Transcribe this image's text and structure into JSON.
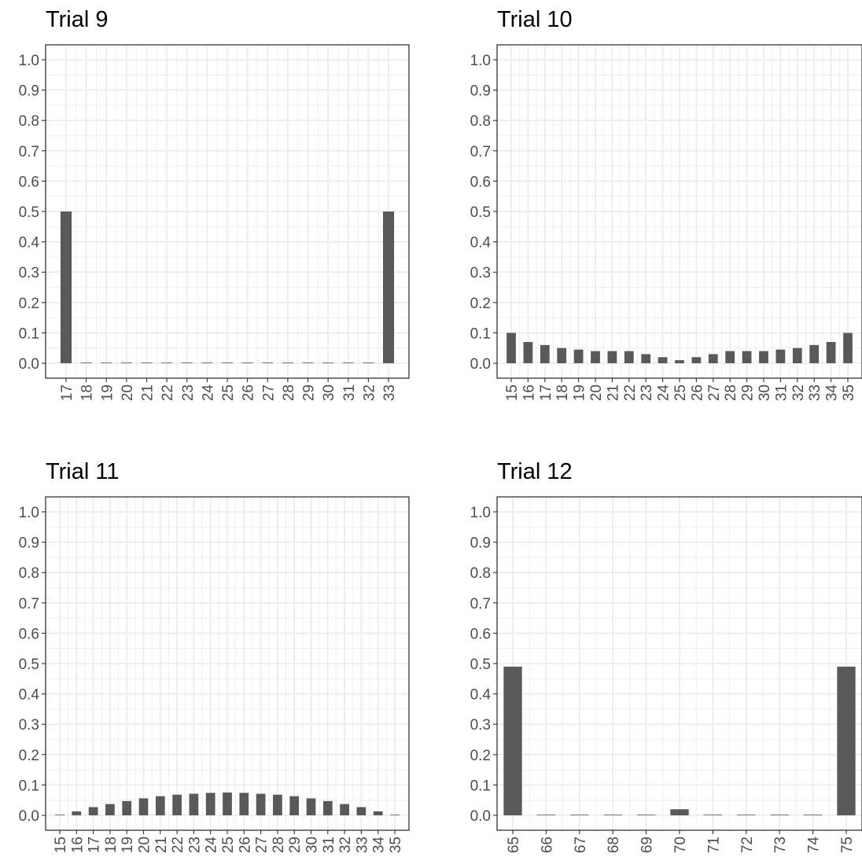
{
  "chart_data": [
    {
      "type": "bar",
      "title": "Trial 9",
      "categories": [
        "17",
        "18",
        "19",
        "20",
        "21",
        "22",
        "23",
        "24",
        "25",
        "26",
        "27",
        "28",
        "29",
        "30",
        "31",
        "32",
        "33"
      ],
      "values": [
        0.5,
        0,
        0,
        0,
        0,
        0,
        0,
        0,
        0,
        0,
        0,
        0,
        0,
        0,
        0,
        0,
        0.5
      ],
      "ylim": [
        0,
        1.0
      ],
      "yticks": [
        "0.0",
        "0.1",
        "0.2",
        "0.3",
        "0.4",
        "0.5",
        "0.6",
        "0.7",
        "0.8",
        "0.9",
        "1.0"
      ],
      "grid": true,
      "bar_color": "#595959"
    },
    {
      "type": "bar",
      "title": "Trial 10",
      "categories": [
        "15",
        "16",
        "17",
        "18",
        "19",
        "20",
        "21",
        "22",
        "23",
        "24",
        "25",
        "26",
        "27",
        "28",
        "29",
        "30",
        "31",
        "32",
        "33",
        "34",
        "35"
      ],
      "values": [
        0.1,
        0.07,
        0.06,
        0.05,
        0.045,
        0.04,
        0.04,
        0.04,
        0.03,
        0.02,
        0.01,
        0.02,
        0.03,
        0.04,
        0.04,
        0.04,
        0.045,
        0.05,
        0.06,
        0.07,
        0.1
      ],
      "ylim": [
        0,
        1.0
      ],
      "yticks": [
        "0.0",
        "0.1",
        "0.2",
        "0.3",
        "0.4",
        "0.5",
        "0.6",
        "0.7",
        "0.8",
        "0.9",
        "1.0"
      ],
      "grid": true,
      "bar_color": "#595959"
    },
    {
      "type": "bar",
      "title": "Trial 11",
      "categories": [
        "15",
        "16",
        "17",
        "18",
        "19",
        "20",
        "21",
        "22",
        "23",
        "24",
        "25",
        "26",
        "27",
        "28",
        "29",
        "30",
        "31",
        "32",
        "33",
        "34",
        "35"
      ],
      "values": [
        0.001,
        0.013,
        0.027,
        0.037,
        0.047,
        0.056,
        0.063,
        0.068,
        0.071,
        0.074,
        0.075,
        0.074,
        0.071,
        0.068,
        0.063,
        0.056,
        0.047,
        0.037,
        0.027,
        0.013,
        0.001
      ],
      "ylim": [
        0,
        1.0
      ],
      "yticks": [
        "0.0",
        "0.1",
        "0.2",
        "0.3",
        "0.4",
        "0.5",
        "0.6",
        "0.7",
        "0.8",
        "0.9",
        "1.0"
      ],
      "grid": true,
      "bar_color": "#595959"
    },
    {
      "type": "bar",
      "title": "Trial 12",
      "categories": [
        "65",
        "66",
        "67",
        "68",
        "69",
        "70",
        "71",
        "72",
        "73",
        "74",
        "75"
      ],
      "values": [
        0.49,
        0,
        0,
        0,
        0,
        0.02,
        0,
        0,
        0,
        0,
        0.49
      ],
      "ylim": [
        0,
        1.0
      ],
      "yticks": [
        "0.0",
        "0.1",
        "0.2",
        "0.3",
        "0.4",
        "0.5",
        "0.6",
        "0.7",
        "0.8",
        "0.9",
        "1.0"
      ],
      "grid": true,
      "bar_color": "#595959"
    }
  ]
}
